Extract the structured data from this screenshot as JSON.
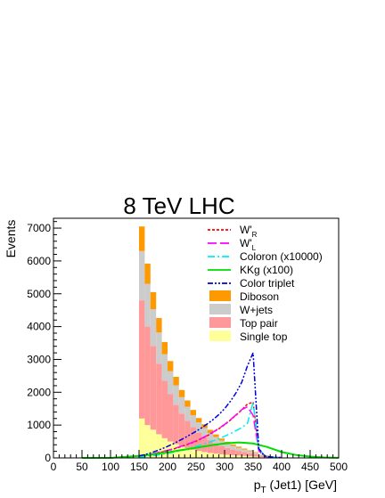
{
  "chart_data": {
    "type": "histogram",
    "title": "8 TeV LHC",
    "xlabel_main": "p",
    "xlabel_sub": "T",
    "xlabel_rest": " (Jet1) [GeV]",
    "ylabel": "Events",
    "xlim": [
      0,
      500
    ],
    "ylim": [
      0,
      7300
    ],
    "x_ticks": [
      0,
      50,
      100,
      150,
      200,
      250,
      300,
      350,
      400,
      450,
      500
    ],
    "y_ticks": [
      0,
      1000,
      2000,
      3000,
      4000,
      5000,
      6000,
      7000
    ],
    "bin_edges": [
      150,
      160,
      170,
      180,
      190,
      200,
      210,
      220,
      230,
      240,
      250,
      260,
      270,
      280,
      290,
      300,
      310,
      320,
      330,
      340,
      350,
      360,
      370,
      380,
      390,
      400
    ],
    "stack": [
      {
        "name": "Single top",
        "color": "#ffff99",
        "values": [
          1200,
          1000,
          860,
          720,
          600,
          500,
          420,
          350,
          300,
          250,
          210,
          180,
          150,
          130,
          110,
          95,
          80,
          70,
          60,
          50,
          40,
          25,
          15,
          10,
          8
        ]
      },
      {
        "name": "Top pair",
        "color": "#ff9999",
        "values": [
          3600,
          3000,
          2550,
          2150,
          1750,
          1450,
          1200,
          1000,
          830,
          690,
          560,
          470,
          390,
          320,
          260,
          210,
          175,
          145,
          120,
          95,
          70,
          40,
          20,
          12,
          8
        ]
      },
      {
        "name": "W+jets",
        "color": "#cccccc",
        "values": [
          1500,
          1300,
          1120,
          950,
          810,
          690,
          590,
          500,
          430,
          360,
          310,
          260,
          220,
          185,
          155,
          130,
          110,
          90,
          75,
          60,
          45,
          25,
          15,
          10,
          6
        ]
      },
      {
        "name": "Diboson",
        "color": "#ff9900",
        "values": [
          750,
          620,
          520,
          440,
          370,
          310,
          260,
          220,
          190,
          160,
          135,
          115,
          95,
          80,
          65,
          55,
          45,
          38,
          30,
          25,
          20,
          12,
          8,
          5,
          3
        ]
      }
    ],
    "overlays": [
      {
        "name": "W'_R",
        "color": "#ff0000",
        "dash": "3,2",
        "width": 1.5,
        "x": [
          150,
          160,
          170,
          180,
          190,
          200,
          210,
          220,
          230,
          240,
          250,
          260,
          270,
          280,
          290,
          300,
          310,
          320,
          330,
          340,
          350,
          360,
          370,
          380,
          390,
          400
        ],
        "y": [
          40,
          70,
          100,
          140,
          180,
          220,
          270,
          320,
          380,
          440,
          510,
          590,
          680,
          780,
          890,
          1010,
          1150,
          1300,
          1460,
          1640,
          1700,
          250,
          60,
          30,
          20,
          10
        ]
      },
      {
        "name": "W'_L",
        "color": "#ff00ff",
        "dash": "10,4",
        "width": 1.5,
        "x": [
          150,
          160,
          170,
          180,
          190,
          200,
          210,
          220,
          230,
          240,
          250,
          260,
          270,
          280,
          290,
          300,
          310,
          320,
          330,
          340,
          350,
          360,
          370,
          380,
          390,
          400
        ],
        "y": [
          50,
          80,
          110,
          150,
          190,
          230,
          280,
          330,
          390,
          450,
          520,
          600,
          690,
          790,
          900,
          1020,
          1160,
          1310,
          1470,
          1560,
          1300,
          220,
          50,
          25,
          15,
          8
        ]
      },
      {
        "name": "Coloron (x10000)",
        "color": "#00eeee",
        "dash": "8,3,2,3",
        "width": 1.5,
        "x": [
          150,
          160,
          170,
          180,
          190,
          200,
          210,
          220,
          230,
          240,
          250,
          260,
          270,
          280,
          290,
          300,
          310,
          320,
          330,
          340,
          350,
          360,
          370,
          380,
          390,
          400
        ],
        "y": [
          20,
          40,
          60,
          80,
          110,
          140,
          170,
          210,
          250,
          300,
          350,
          400,
          460,
          520,
          590,
          660,
          740,
          830,
          920,
          1050,
          1700,
          300,
          60,
          30,
          20,
          10
        ]
      },
      {
        "name": "KKg (x100)",
        "color": "#00dd00",
        "dash": "",
        "width": 2,
        "x": [
          50,
          100,
          150,
          175,
          200,
          225,
          250,
          275,
          300,
          325,
          350,
          375,
          400,
          425,
          450,
          475,
          500
        ],
        "y": [
          0,
          0,
          60,
          110,
          170,
          240,
          310,
          380,
          440,
          470,
          440,
          330,
          180,
          90,
          40,
          15,
          5
        ]
      },
      {
        "name": "Color triplet",
        "color": "#0000dd",
        "dash": "6,2,2,2,2,2",
        "width": 1.5,
        "x": [
          150,
          160,
          170,
          180,
          190,
          200,
          210,
          220,
          230,
          240,
          250,
          260,
          270,
          280,
          290,
          300,
          310,
          320,
          330,
          340,
          350,
          360,
          370,
          380,
          390,
          400
        ],
        "y": [
          60,
          100,
          150,
          210,
          280,
          350,
          430,
          520,
          610,
          710,
          810,
          920,
          1040,
          1170,
          1320,
          1500,
          1720,
          1980,
          2300,
          2800,
          3200,
          280,
          60,
          30,
          20,
          10
        ]
      }
    ],
    "legend": {
      "position": "top-right",
      "line_entries": [
        {
          "label": "W'",
          "sub": "R",
          "color": "#ff0000",
          "dash": "3,2"
        },
        {
          "label": "W'",
          "sub": "L",
          "color": "#ff00ff",
          "dash": "10,4"
        },
        {
          "label": "Coloron (x10000)",
          "sub": "",
          "color": "#00eeee",
          "dash": "8,3,2,3"
        },
        {
          "label": "KKg (x100)",
          "sub": "",
          "color": "#00dd00",
          "dash": ""
        },
        {
          "label": "Color triplet",
          "sub": "",
          "color": "#0000dd",
          "dash": "6,2,2,2,2,2"
        }
      ],
      "fill_entries": [
        {
          "label": "Diboson",
          "color": "#ff9900"
        },
        {
          "label": "W+jets",
          "color": "#cccccc"
        },
        {
          "label": "Top pair",
          "color": "#ff9999"
        },
        {
          "label": "Single top",
          "color": "#ffff99"
        }
      ]
    }
  }
}
